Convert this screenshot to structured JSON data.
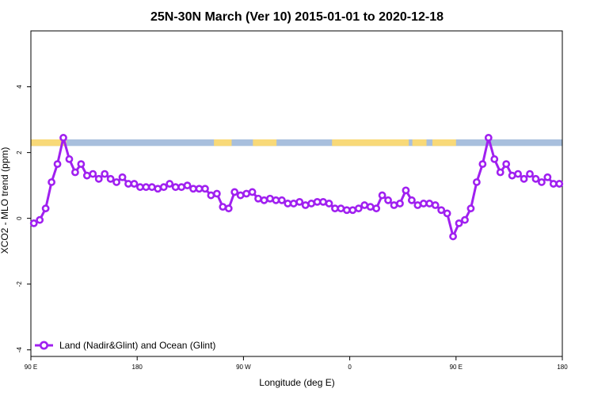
{
  "chart_data": {
    "type": "line",
    "title": "25N-30N March (Ver 10)   2015-01-01 to 2020-12-18",
    "xlabel": "Longitude (deg E)",
    "ylabel": "XCO2 - MLO trend (ppm)",
    "x_axis": {
      "range_deg": [
        90,
        540
      ],
      "ticks": [
        {
          "value": 90,
          "label": "90 E"
        },
        {
          "value": 180,
          "label": "180"
        },
        {
          "value": 270,
          "label": "90 W"
        },
        {
          "value": 360,
          "label": "0"
        },
        {
          "value": 450,
          "label": "90 E"
        },
        {
          "value": 540,
          "label": "180"
        }
      ]
    },
    "y_axis": {
      "range": [
        -4.2,
        5.7
      ],
      "ticks": [
        {
          "value": -4,
          "label": "-4"
        },
        {
          "value": -2,
          "label": "-2"
        },
        {
          "value": 0,
          "label": "0"
        },
        {
          "value": 2,
          "label": "2"
        },
        {
          "value": 4,
          "label": "4"
        }
      ]
    },
    "grid": false,
    "legend": {
      "position": "bottom-left",
      "entries": [
        {
          "label": "Land (Nadir&Glint) and Ocean (Glint)",
          "color": "#a020f0"
        }
      ]
    },
    "landmask": {
      "y_range": [
        2.2,
        2.4
      ],
      "ocean_color": "#a8bfdd",
      "land_color": "#f8d978",
      "land_segments_deg": [
        [
          90,
          120
        ],
        [
          245,
          260
        ],
        [
          278,
          282
        ],
        [
          280,
          298
        ],
        [
          345,
          410
        ],
        [
          413,
          425
        ],
        [
          430,
          450
        ]
      ]
    },
    "series": [
      {
        "name": "Land (Nadir&Glint) and Ocean (Glint)",
        "color": "#a020f0",
        "x": [
          92.5,
          97.5,
          102.5,
          107.5,
          112.5,
          117.5,
          122.5,
          127.5,
          132.5,
          137.5,
          142.5,
          147.5,
          152.5,
          157.5,
          162.5,
          167.5,
          172.5,
          177.5,
          182.5,
          187.5,
          192.5,
          197.5,
          202.5,
          207.5,
          212.5,
          217.5,
          222.5,
          227.5,
          232.5,
          237.5,
          242.5,
          247.5,
          252.5,
          257.5,
          262.5,
          267.5,
          272.5,
          277.5,
          282.5,
          287.5,
          292.5,
          297.5,
          302.5,
          307.5,
          312.5,
          317.5,
          322.5,
          327.5,
          332.5,
          337.5,
          342.5,
          347.5,
          352.5,
          357.5,
          362.5,
          367.5,
          372.5,
          377.5,
          382.5,
          387.5,
          392.5,
          397.5,
          402.5,
          407.5,
          412.5,
          417.5,
          422.5,
          427.5,
          432.5,
          437.5,
          442.5,
          447.5,
          452.5,
          457.5,
          462.5,
          467.5,
          472.5,
          477.5,
          482.5,
          487.5,
          492.5,
          497.5,
          502.5,
          507.5,
          512.5,
          517.5,
          522.5,
          527.5,
          532.5,
          537.5
        ],
        "values": [
          -0.15,
          -0.05,
          0.3,
          1.1,
          1.65,
          2.45,
          1.8,
          1.4,
          1.65,
          1.3,
          1.35,
          1.2,
          1.35,
          1.2,
          1.1,
          1.25,
          1.05,
          1.05,
          0.95,
          0.95,
          0.95,
          0.9,
          0.95,
          1.05,
          0.95,
          0.95,
          1.0,
          0.9,
          0.9,
          0.9,
          0.7,
          0.75,
          0.35,
          0.3,
          0.8,
          0.7,
          0.75,
          0.8,
          0.6,
          0.55,
          0.6,
          0.55,
          0.55,
          0.45,
          0.45,
          0.5,
          0.4,
          0.45,
          0.5,
          0.5,
          0.45,
          0.3,
          0.3,
          0.25,
          0.25,
          0.3,
          0.4,
          0.35,
          0.3,
          0.7,
          0.55,
          0.4,
          0.45,
          0.85,
          0.55,
          0.4,
          0.45,
          0.45,
          0.4,
          0.25,
          0.15,
          -0.55,
          -0.15,
          -0.05,
          0.3,
          1.1,
          1.65,
          2.45,
          1.8,
          1.4,
          1.65,
          1.3,
          1.35,
          1.2,
          1.35,
          1.2,
          1.1,
          1.25,
          1.05,
          1.05
        ]
      }
    ]
  }
}
